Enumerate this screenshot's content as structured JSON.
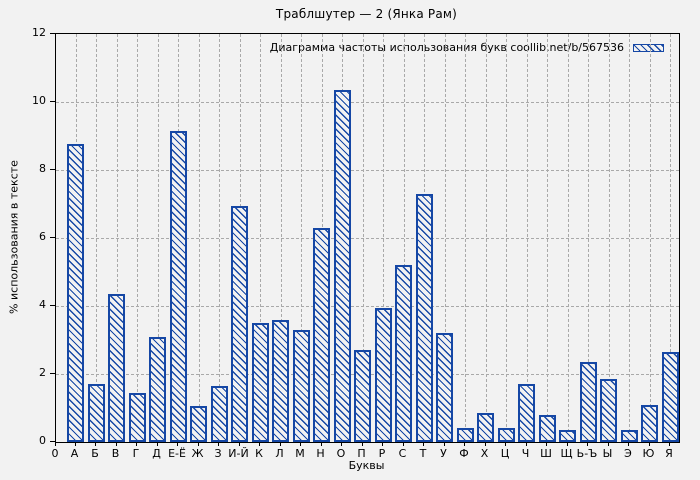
{
  "title": "Траблшутер — 2 (Янка Рам)",
  "legend": {
    "label": "Диаграмма частоты использования букв coollib.net/b/567536"
  },
  "axes": {
    "y_label": "% использования в тексте",
    "x_label": "Буквы",
    "origin_label": "0"
  },
  "colors": {
    "bar_blue": "#1547a5",
    "background": "#f2f2f2",
    "grid": "#a9a9a9",
    "axis": "#000000"
  },
  "chart_data": {
    "type": "bar",
    "title": "Траблшутер — 2 (Янка Рам)",
    "xlabel": "Буквы",
    "ylabel": "% использования в тексте",
    "ylim": [
      0,
      12
    ],
    "y_ticks": [
      0,
      2,
      4,
      6,
      8,
      10,
      12
    ],
    "grid": true,
    "legend": "Диаграмма частоты использования букв coollib.net/b/567536",
    "legend_position": "top-right-inside",
    "bar_style": "diagonal-hatch",
    "categories": [
      "А",
      "Б",
      "В",
      "Г",
      "Д",
      "Е-Ё",
      "Ж",
      "З",
      "И-Й",
      "К",
      "Л",
      "М",
      "Н",
      "О",
      "П",
      "Р",
      "С",
      "Т",
      "У",
      "Ф",
      "Х",
      "Ц",
      "Ч",
      "Ш",
      "Щ",
      "Ь-Ъ",
      "Ы",
      "Э",
      "Ю",
      "Я"
    ],
    "values": [
      8.75,
      1.7,
      4.35,
      1.45,
      3.1,
      9.15,
      1.05,
      1.65,
      6.95,
      3.5,
      3.6,
      3.3,
      6.3,
      10.35,
      2.7,
      3.95,
      5.2,
      7.3,
      3.2,
      0.4,
      0.85,
      0.4,
      1.7,
      0.8,
      0.35,
      2.35,
      1.85,
      0.35,
      1.1,
      2.65
    ]
  }
}
